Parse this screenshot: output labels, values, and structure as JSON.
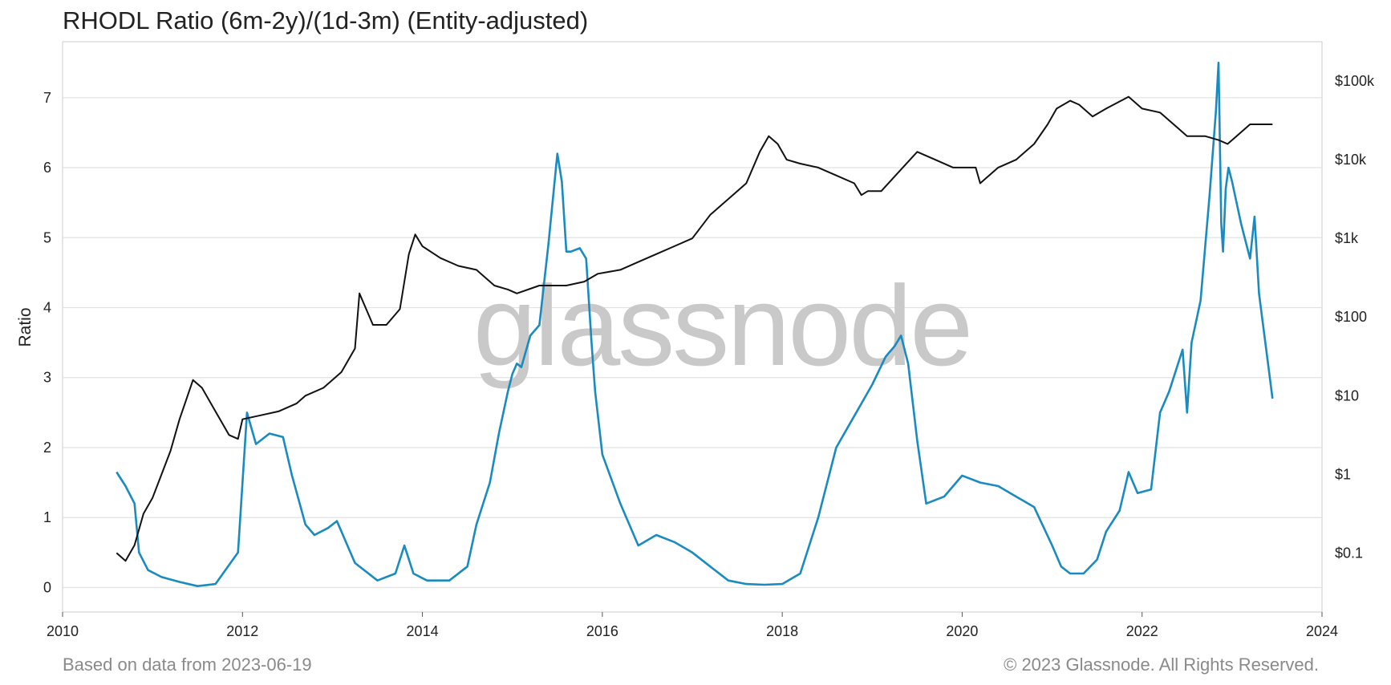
{
  "header": {
    "title": "RHODL Ratio (6m-2y)/(1d-3m) (Entity-adjusted)"
  },
  "footer": {
    "based_on": "Based on data from 2023-06-19",
    "copyright": "© 2023 Glassnode. All Rights Reserved."
  },
  "watermark": "glassnode",
  "colors": {
    "rhodl": "#1a8bbf",
    "price": "#111111",
    "grid": "#e2e2e2",
    "axis": "#cccccc"
  },
  "chart_data": {
    "type": "line",
    "title": "RHODL Ratio (6m-2y)/(1d-3m) (Entity-adjusted)",
    "xlabel": "",
    "ylabel": "Ratio",
    "xlim": [
      2010,
      2024
    ],
    "ylim": [
      -0.35,
      7.8
    ],
    "y2lim_log10": [
      -1.75,
      5.5
    ],
    "grid": true,
    "x_ticks": [
      2010,
      2012,
      2014,
      2016,
      2018,
      2020,
      2022,
      2024
    ],
    "x_tick_labels": [
      "2010",
      "2012",
      "2014",
      "2016",
      "2018",
      "2020",
      "2022",
      "2024"
    ],
    "y_ticks": [
      0,
      1,
      2,
      3,
      4,
      5,
      6,
      7
    ],
    "y_tick_labels": [
      "0",
      "1",
      "2",
      "3",
      "4",
      "5",
      "6",
      "7"
    ],
    "y2_ticks_log10": [
      -1,
      0,
      1,
      2,
      3,
      4,
      5
    ],
    "y2_tick_labels": [
      "$0.1",
      "$1",
      "$10",
      "$100",
      "$1k",
      "$10k",
      "$100k"
    ],
    "series": [
      {
        "axis": "left",
        "color": "#1a8bbf",
        "x": [
          2010.6,
          2010.7,
          2010.8,
          2010.85,
          2010.95,
          2011.1,
          2011.3,
          2011.5,
          2011.7,
          2011.95,
          2012.05,
          2012.15,
          2012.3,
          2012.45,
          2012.55,
          2012.7,
          2012.8,
          2012.95,
          2013.05,
          2013.25,
          2013.5,
          2013.7,
          2013.8,
          2013.9,
          2014.05,
          2014.3,
          2014.5,
          2014.6,
          2014.75,
          2014.85,
          2014.95,
          2015.0,
          2015.05,
          2015.1,
          2015.2,
          2015.3,
          2015.4,
          2015.5,
          2015.55,
          2015.6,
          2015.65,
          2015.75,
          2015.82,
          2015.88,
          2015.92,
          2016.0,
          2016.2,
          2016.4,
          2016.6,
          2016.8,
          2017.0,
          2017.2,
          2017.4,
          2017.6,
          2017.8,
          2018.0,
          2018.2,
          2018.4,
          2018.6,
          2018.8,
          2019.0,
          2019.15,
          2019.25,
          2019.32,
          2019.4,
          2019.5,
          2019.6,
          2019.8,
          2020.0,
          2020.2,
          2020.4,
          2020.6,
          2020.8,
          2021.0,
          2021.1,
          2021.2,
          2021.35,
          2021.5,
          2021.6,
          2021.75,
          2021.85,
          2021.95,
          2022.1,
          2022.2,
          2022.3,
          2022.45,
          2022.5,
          2022.55,
          2022.65,
          2022.75,
          2022.82,
          2022.85,
          2022.88,
          2022.9,
          2022.93,
          2022.96,
          2023.0,
          2023.1,
          2023.2,
          2023.25,
          2023.3,
          2023.4,
          2023.45
        ],
        "y": [
          1.65,
          1.45,
          1.2,
          0.5,
          0.25,
          0.15,
          0.08,
          0.02,
          0.05,
          0.5,
          2.5,
          2.05,
          2.2,
          2.15,
          1.6,
          0.9,
          0.75,
          0.85,
          0.95,
          0.35,
          0.1,
          0.2,
          0.6,
          0.2,
          0.1,
          0.1,
          0.3,
          0.9,
          1.5,
          2.2,
          2.8,
          3.05,
          3.2,
          3.15,
          3.6,
          3.75,
          4.9,
          6.2,
          5.8,
          4.8,
          4.8,
          4.85,
          4.7,
          3.5,
          2.8,
          1.9,
          1.2,
          0.6,
          0.75,
          0.65,
          0.5,
          0.3,
          0.1,
          0.05,
          0.04,
          0.05,
          0.2,
          1.0,
          2.0,
          2.45,
          2.9,
          3.3,
          3.45,
          3.6,
          3.2,
          2.1,
          1.2,
          1.3,
          1.6,
          1.5,
          1.45,
          1.3,
          1.15,
          0.6,
          0.3,
          0.2,
          0.2,
          0.4,
          0.8,
          1.1,
          1.65,
          1.35,
          1.4,
          2.5,
          2.8,
          3.4,
          2.5,
          3.5,
          4.1,
          5.6,
          6.8,
          7.5,
          5.2,
          4.8,
          5.7,
          6.0,
          5.8,
          5.2,
          4.7,
          5.3,
          4.2,
          3.2,
          2.7
        ]
      },
      {
        "axis": "right",
        "color": "#111111",
        "x": [
          2010.6,
          2010.7,
          2010.8,
          2010.9,
          2011.0,
          2011.1,
          2011.2,
          2011.3,
          2011.45,
          2011.55,
          2011.7,
          2011.85,
          2011.95,
          2012.0,
          2012.2,
          2012.4,
          2012.6,
          2012.7,
          2012.9,
          2013.1,
          2013.25,
          2013.3,
          2013.45,
          2013.6,
          2013.75,
          2013.85,
          2013.92,
          2014.0,
          2014.2,
          2014.4,
          2014.6,
          2014.8,
          2014.95,
          2015.05,
          2015.3,
          2015.6,
          2015.8,
          2015.95,
          2016.2,
          2016.4,
          2016.6,
          2016.8,
          2017.0,
          2017.2,
          2017.4,
          2017.6,
          2017.75,
          2017.85,
          2017.95,
          2018.05,
          2018.2,
          2018.4,
          2018.6,
          2018.8,
          2018.88,
          2018.95,
          2019.1,
          2019.3,
          2019.5,
          2019.7,
          2019.9,
          2020.0,
          2020.15,
          2020.2,
          2020.4,
          2020.6,
          2020.8,
          2020.95,
          2021.05,
          2021.2,
          2021.3,
          2021.45,
          2021.6,
          2021.85,
          2022.0,
          2022.2,
          2022.4,
          2022.5,
          2022.7,
          2022.85,
          2022.95,
          2023.05,
          2023.2,
          2023.35,
          2023.45
        ],
        "y": [
          -1.0,
          -1.1,
          -0.9,
          -0.5,
          -0.3,
          0.0,
          0.3,
          0.7,
          1.2,
          1.1,
          0.8,
          0.5,
          0.45,
          0.7,
          0.75,
          0.8,
          0.9,
          1.0,
          1.1,
          1.3,
          1.6,
          2.3,
          1.9,
          1.9,
          2.1,
          2.8,
          3.05,
          2.9,
          2.75,
          2.65,
          2.6,
          2.4,
          2.35,
          2.3,
          2.4,
          2.4,
          2.45,
          2.55,
          2.6,
          2.7,
          2.8,
          2.9,
          3.0,
          3.3,
          3.5,
          3.7,
          4.1,
          4.3,
          4.2,
          4.0,
          3.95,
          3.9,
          3.8,
          3.7,
          3.55,
          3.6,
          3.6,
          3.85,
          4.1,
          4.0,
          3.9,
          3.9,
          3.9,
          3.7,
          3.9,
          4.0,
          4.2,
          4.45,
          4.65,
          4.75,
          4.7,
          4.55,
          4.65,
          4.8,
          4.65,
          4.6,
          4.4,
          4.3,
          4.3,
          4.25,
          4.2,
          4.3,
          4.45,
          4.45,
          4.45
        ]
      }
    ]
  }
}
